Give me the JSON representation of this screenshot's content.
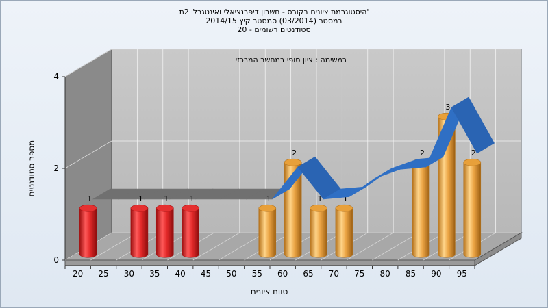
{
  "chart_data": {
    "type": "bar",
    "title_lines": [
      "היסטוגרמת ציונים בקורס - חשבון דיפרנציאלי ואינטגרלי 2ת'",
      "במסטר  (03/2014)  סמסטר קיץ  2014/15",
      "סטודנטים רשומים - 20"
    ],
    "annotation": "במשימה : ציון סופי במחשב המרכזי",
    "xlabel": "טווח ציונים",
    "ylabel": "מספר סטודנטים",
    "x_ticks": [
      20,
      25,
      30,
      35,
      40,
      45,
      50,
      55,
      60,
      65,
      70,
      75,
      80,
      85,
      90,
      95
    ],
    "x_range": [
      20,
      100
    ],
    "y_ticks": [
      0,
      2,
      4
    ],
    "ylim": [
      0,
      4
    ],
    "grid": true,
    "bars": [
      {
        "x": 20,
        "value": 1,
        "label": "1",
        "color": "#e53030"
      },
      {
        "x": 30,
        "value": 1,
        "label": "1",
        "color": "#e53030"
      },
      {
        "x": 35,
        "value": 1,
        "label": "1",
        "color": "#e53030"
      },
      {
        "x": 40,
        "value": 1,
        "label": "1",
        "color": "#e53030"
      },
      {
        "x": 55,
        "value": 1,
        "label": "1",
        "color": "#e8a03a"
      },
      {
        "x": 60,
        "value": 2,
        "label": "2",
        "color": "#e8a03a"
      },
      {
        "x": 65,
        "value": 1,
        "label": "1",
        "color": "#e8a03a"
      },
      {
        "x": 70,
        "value": 1,
        "label": "1",
        "color": "#e8a03a"
      },
      {
        "x": 85,
        "value": 2,
        "label": "2",
        "color": "#e8a03a"
      },
      {
        "x": 90,
        "value": 3,
        "label": "3",
        "color": "#e8a03a"
      },
      {
        "x": 95,
        "value": 2,
        "label": "2",
        "color": "#e8a03a"
      }
    ],
    "curve": {
      "x": [
        25,
        30,
        35,
        40,
        45,
        50,
        55,
        60,
        65,
        70,
        75,
        80,
        85,
        90,
        95,
        100
      ],
      "values": [
        1.3,
        1.3,
        1.3,
        1.3,
        1.3,
        1.3,
        1.3,
        1.3,
        2.0,
        1.3,
        1.35,
        1.75,
        1.95,
        2.0,
        3.3,
        2.3
      ]
    },
    "colors": {
      "curve_front": "#2f6fc4",
      "curve_back": "#707070",
      "back_wall": "#bfbfbf",
      "side_wall": "#8a8a8a",
      "floor": "#a8a8a8"
    }
  }
}
